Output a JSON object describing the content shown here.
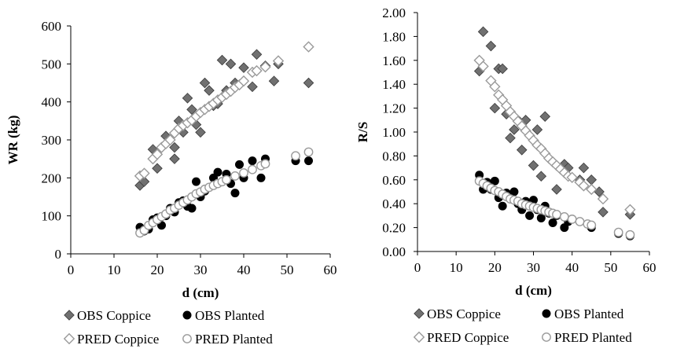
{
  "chart_data": [
    {
      "type": "scatter",
      "xlabel": "d (cm)",
      "ylabel": "WR (kg)",
      "xlim": [
        0,
        60
      ],
      "ylim": [
        0,
        600
      ],
      "xticks": [
        "0",
        "10",
        "20",
        "30",
        "40",
        "50",
        "60"
      ],
      "yticks": [
        "0",
        "100",
        "200",
        "300",
        "400",
        "500",
        "600"
      ],
      "grid": false,
      "legend_position": "bottom",
      "series": [
        {
          "name": "OBS Coppice",
          "marker": "diamond-filled",
          "color": "#707070",
          "points": [
            [
              16,
              180
            ],
            [
              17,
              190
            ],
            [
              19,
              275
            ],
            [
              20,
              225
            ],
            [
              21,
              280
            ],
            [
              22,
              310
            ],
            [
              24,
              280
            ],
            [
              24,
              250
            ],
            [
              25,
              350
            ],
            [
              26,
              320
            ],
            [
              27,
              410
            ],
            [
              28,
              380
            ],
            [
              29,
              340
            ],
            [
              30,
              320
            ],
            [
              31,
              450
            ],
            [
              32,
              430
            ],
            [
              33,
              390
            ],
            [
              34,
              395
            ],
            [
              35,
              510
            ],
            [
              36,
              430
            ],
            [
              37,
              500
            ],
            [
              38,
              450
            ],
            [
              40,
              490
            ],
            [
              42,
              440
            ],
            [
              43,
              525
            ],
            [
              45,
              495
            ],
            [
              47,
              455
            ],
            [
              48,
              500
            ],
            [
              55,
              450
            ]
          ]
        },
        {
          "name": "OBS Planted",
          "marker": "circle-filled",
          "color": "#000000",
          "points": [
            [
              16,
              70
            ],
            [
              17,
              60
            ],
            [
              18,
              65
            ],
            [
              19,
              90
            ],
            [
              20,
              95
            ],
            [
              21,
              75
            ],
            [
              22,
              100
            ],
            [
              23,
              120
            ],
            [
              24,
              110
            ],
            [
              25,
              135
            ],
            [
              26,
              140
            ],
            [
              27,
              125
            ],
            [
              28,
              120
            ],
            [
              29,
              190
            ],
            [
              30,
              150
            ],
            [
              31,
              165
            ],
            [
              33,
              200
            ],
            [
              34,
              215
            ],
            [
              35,
              190
            ],
            [
              36,
              210
            ],
            [
              37,
              185
            ],
            [
              38,
              160
            ],
            [
              39,
              235
            ],
            [
              40,
              200
            ],
            [
              42,
              245
            ],
            [
              44,
              200
            ],
            [
              45,
              250
            ],
            [
              52,
              245
            ],
            [
              55,
              245
            ]
          ]
        },
        {
          "name": "PRED Planted",
          "marker": "circle-open",
          "color": "#9a9a9a",
          "points": [
            [
              16,
              55
            ],
            [
              17,
              62
            ],
            [
              18,
              75
            ],
            [
              19,
              82
            ],
            [
              20,
              90
            ],
            [
              21,
              98
            ],
            [
              22,
              105
            ],
            [
              23,
              115
            ],
            [
              24,
              120
            ],
            [
              25,
              128
            ],
            [
              26,
              135
            ],
            [
              27,
              142
            ],
            [
              28,
              150
            ],
            [
              29,
              158
            ],
            [
              30,
              163
            ],
            [
              31,
              170
            ],
            [
              32,
              175
            ],
            [
              33,
              180
            ],
            [
              34,
              185
            ],
            [
              35,
              190
            ],
            [
              36,
              195
            ],
            [
              38,
              205
            ],
            [
              40,
              213
            ],
            [
              42,
              222
            ],
            [
              44,
              232
            ],
            [
              45,
              237
            ],
            [
              52,
              258
            ],
            [
              55,
              268
            ]
          ]
        },
        {
          "name": "PRED Coppice",
          "marker": "diamond-open",
          "color": "#9a9a9a",
          "points": [
            [
              16,
              205
            ],
            [
              17,
              212
            ],
            [
              19,
              250
            ],
            [
              20,
              262
            ],
            [
              21,
              280
            ],
            [
              22,
              290
            ],
            [
              23,
              300
            ],
            [
              24,
              318
            ],
            [
              25,
              330
            ],
            [
              26,
              338
            ],
            [
              27,
              345
            ],
            [
              28,
              352
            ],
            [
              29,
              362
            ],
            [
              30,
              372
            ],
            [
              31,
              380
            ],
            [
              32,
              388
            ],
            [
              33,
              396
            ],
            [
              34,
              405
            ],
            [
              35,
              412
            ],
            [
              36,
              420
            ],
            [
              37,
              428
            ],
            [
              38,
              438
            ],
            [
              39,
              445
            ],
            [
              40,
              455
            ],
            [
              42,
              478
            ],
            [
              43,
              482
            ],
            [
              45,
              492
            ],
            [
              48,
              508
            ],
            [
              55,
              545
            ]
          ]
        }
      ]
    },
    {
      "type": "scatter",
      "xlabel": "d (cm)",
      "ylabel": "R/S",
      "xlim": [
        0,
        60
      ],
      "ylim": [
        0,
        2.0
      ],
      "xticks": [
        "0",
        "10",
        "20",
        "30",
        "40",
        "50",
        "60"
      ],
      "yticks": [
        "0.00",
        "0.20",
        "0.40",
        "0.60",
        "0.80",
        "1.00",
        "1.20",
        "1.40",
        "1.60",
        "1.80",
        "2.00"
      ],
      "grid": false,
      "legend_position": "bottom",
      "series": [
        {
          "name": "OBS Coppice",
          "marker": "diamond-filled",
          "color": "#707070",
          "points": [
            [
              16,
              1.51
            ],
            [
              17,
              1.84
            ],
            [
              19,
              1.72
            ],
            [
              20,
              1.2
            ],
            [
              21,
              1.53
            ],
            [
              22,
              1.53
            ],
            [
              23,
              1.15
            ],
            [
              24,
              0.95
            ],
            [
              25,
              1.02
            ],
            [
              26,
              1.1
            ],
            [
              27,
              0.85
            ],
            [
              28,
              1.1
            ],
            [
              30,
              0.72
            ],
            [
              31,
              1.02
            ],
            [
              32,
              0.63
            ],
            [
              33,
              1.13
            ],
            [
              35,
              0.75
            ],
            [
              36,
              0.52
            ],
            [
              38,
              0.73
            ],
            [
              39,
              0.7
            ],
            [
              42,
              0.6
            ],
            [
              43,
              0.7
            ],
            [
              45,
              0.6
            ],
            [
              47,
              0.5
            ],
            [
              48,
              0.33
            ],
            [
              55,
              0.31
            ]
          ]
        },
        {
          "name": "OBS Planted",
          "marker": "circle-filled",
          "color": "#000000",
          "points": [
            [
              16,
              0.64
            ],
            [
              17,
              0.52
            ],
            [
              18,
              0.58
            ],
            [
              19,
              0.52
            ],
            [
              20,
              0.59
            ],
            [
              21,
              0.45
            ],
            [
              22,
              0.38
            ],
            [
              23,
              0.49
            ],
            [
              24,
              0.44
            ],
            [
              25,
              0.5
            ],
            [
              26,
              0.4
            ],
            [
              27,
              0.35
            ],
            [
              28,
              0.42
            ],
            [
              29,
              0.3
            ],
            [
              30,
              0.43
            ],
            [
              31,
              0.35
            ],
            [
              32,
              0.28
            ],
            [
              33,
              0.38
            ],
            [
              34,
              0.32
            ],
            [
              35,
              0.24
            ],
            [
              36,
              0.3
            ],
            [
              38,
              0.2
            ],
            [
              39,
              0.25
            ],
            [
              40,
              0.27
            ],
            [
              42,
              0.25
            ],
            [
              45,
              0.2
            ],
            [
              52,
              0.15
            ],
            [
              55,
              0.13
            ]
          ]
        },
        {
          "name": "PRED Planted",
          "marker": "circle-open",
          "color": "#9a9a9a",
          "points": [
            [
              16,
              0.59
            ],
            [
              17,
              0.57
            ],
            [
              18,
              0.55
            ],
            [
              19,
              0.53
            ],
            [
              20,
              0.51
            ],
            [
              21,
              0.5
            ],
            [
              22,
              0.48
            ],
            [
              23,
              0.46
            ],
            [
              24,
              0.44
            ],
            [
              25,
              0.43
            ],
            [
              26,
              0.42
            ],
            [
              27,
              0.4
            ],
            [
              28,
              0.39
            ],
            [
              29,
              0.38
            ],
            [
              30,
              0.37
            ],
            [
              31,
              0.36
            ],
            [
              32,
              0.35
            ],
            [
              33,
              0.34
            ],
            [
              34,
              0.33
            ],
            [
              35,
              0.32
            ],
            [
              36,
              0.31
            ],
            [
              38,
              0.29
            ],
            [
              40,
              0.27
            ],
            [
              42,
              0.25
            ],
            [
              44,
              0.23
            ],
            [
              45,
              0.22
            ],
            [
              52,
              0.16
            ],
            [
              55,
              0.14
            ]
          ]
        },
        {
          "name": "PRED Coppice",
          "marker": "diamond-open",
          "color": "#9a9a9a",
          "points": [
            [
              16,
              1.6
            ],
            [
              17,
              1.55
            ],
            [
              19,
              1.43
            ],
            [
              20,
              1.38
            ],
            [
              21,
              1.31
            ],
            [
              22,
              1.27
            ],
            [
              23,
              1.22
            ],
            [
              24,
              1.17
            ],
            [
              25,
              1.13
            ],
            [
              26,
              1.09
            ],
            [
              27,
              1.05
            ],
            [
              28,
              1.01
            ],
            [
              29,
              0.97
            ],
            [
              30,
              0.93
            ],
            [
              31,
              0.89
            ],
            [
              32,
              0.86
            ],
            [
              33,
              0.82
            ],
            [
              34,
              0.78
            ],
            [
              35,
              0.75
            ],
            [
              36,
              0.72
            ],
            [
              37,
              0.69
            ],
            [
              38,
              0.66
            ],
            [
              39,
              0.63
            ],
            [
              40,
              0.62
            ],
            [
              42,
              0.58
            ],
            [
              43,
              0.55
            ],
            [
              45,
              0.52
            ],
            [
              48,
              0.44
            ],
            [
              55,
              0.35
            ]
          ]
        }
      ]
    }
  ]
}
